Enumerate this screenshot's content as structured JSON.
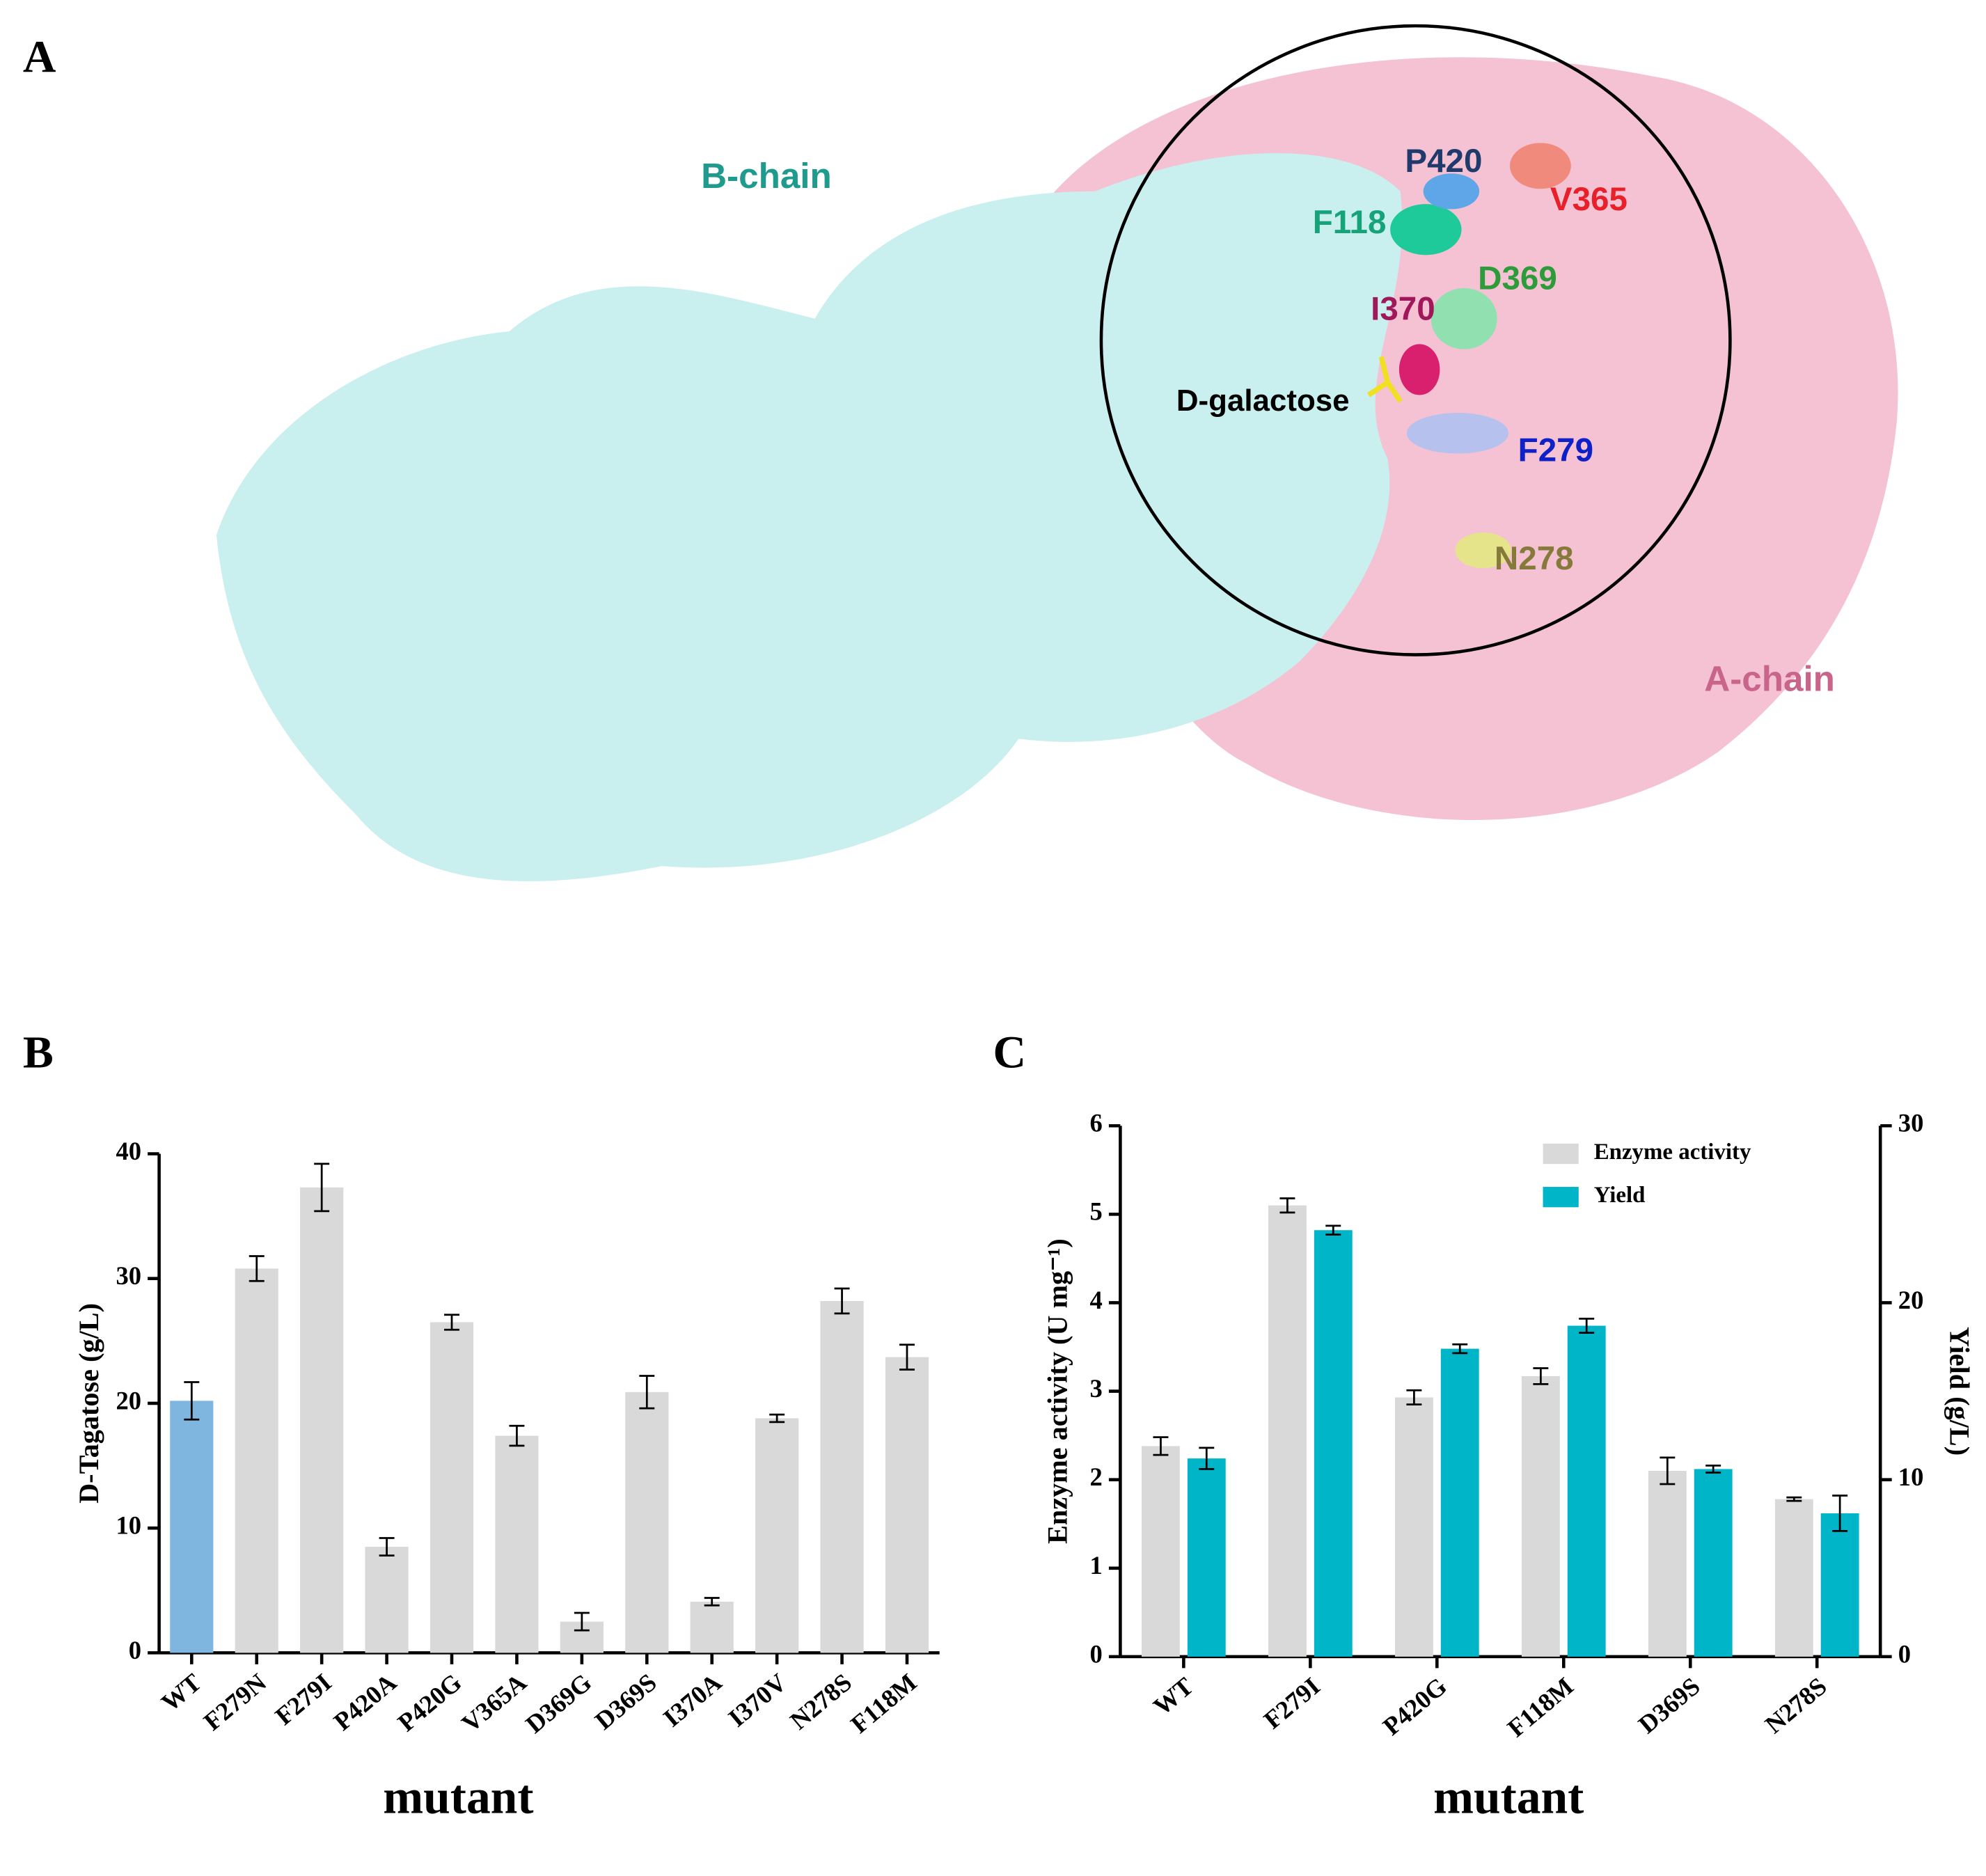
{
  "structure": {
    "panel_label": "A",
    "labels": [
      {
        "text": "B-chain",
        "color": "#1f9a8c"
      },
      {
        "text": "A-chain",
        "color": "#c9658a"
      },
      {
        "text": "P420",
        "color": "#1f3a6b"
      },
      {
        "text": "V365",
        "color": "#e8202a"
      },
      {
        "text": "F118",
        "color": "#17a37a"
      },
      {
        "text": "D369",
        "color": "#2e9b3a"
      },
      {
        "text": "I370",
        "color": "#a0185a"
      },
      {
        "text": "D-galactose",
        "color": "#000000"
      },
      {
        "text": "F279",
        "color": "#1020c8"
      },
      {
        "text": "N278",
        "color": "#857a3a"
      }
    ]
  },
  "chart_data": [
    {
      "type": "bar",
      "panel_label": "B",
      "categories": [
        "WT",
        "F279N",
        "F279I",
        "P420A",
        "P420G",
        "V365A",
        "D369G",
        "D369S",
        "I370A",
        "I370V",
        "N278S",
        "F118M"
      ],
      "values": [
        20.2,
        30.8,
        37.3,
        8.5,
        26.5,
        17.4,
        2.5,
        20.9,
        4.1,
        18.8,
        28.2,
        23.7
      ],
      "errors": [
        1.5,
        1.0,
        1.9,
        0.7,
        0.6,
        0.8,
        0.7,
        1.3,
        0.3,
        0.3,
        1.0,
        1.0
      ],
      "colors": [
        "#7fb6e0",
        "#d9d9d9",
        "#d9d9d9",
        "#d9d9d9",
        "#d9d9d9",
        "#d9d9d9",
        "#d9d9d9",
        "#d9d9d9",
        "#d9d9d9",
        "#d9d9d9",
        "#d9d9d9",
        "#d9d9d9"
      ],
      "ylabel": "D-Tagatose (g/L)",
      "xlabel": "mutant",
      "ylim": [
        0,
        40
      ],
      "yticks": [
        0,
        10,
        20,
        30,
        40
      ]
    },
    {
      "type": "bar",
      "panel_label": "C",
      "categories": [
        "WT",
        "F279I",
        "P420G",
        "F118M",
        "D369S",
        "N278S"
      ],
      "series": [
        {
          "name": "Enzyme activity",
          "color": "#d9d9d9",
          "values": [
            2.38,
            5.1,
            2.93,
            3.17,
            2.1,
            1.78
          ],
          "errors": [
            0.1,
            0.08,
            0.08,
            0.09,
            0.15,
            0.02
          ]
        },
        {
          "name": "Yield",
          "color": "#00b5c8",
          "axis": "y2",
          "values": [
            11.2,
            24.1,
            17.4,
            18.7,
            10.6,
            8.1
          ],
          "errors": [
            0.6,
            0.25,
            0.25,
            0.4,
            0.2,
            1.0
          ]
        }
      ],
      "ylabel": "Enzyme activity (U mg⁻¹)",
      "y2label": "Yield (g/L)",
      "xlabel": "mutant",
      "ylim": [
        0,
        6
      ],
      "yticks": [
        0,
        1,
        2,
        3,
        4,
        5,
        6
      ],
      "y2lim": [
        0,
        30
      ],
      "y2ticks": [
        0,
        10,
        20,
        30
      ]
    }
  ]
}
